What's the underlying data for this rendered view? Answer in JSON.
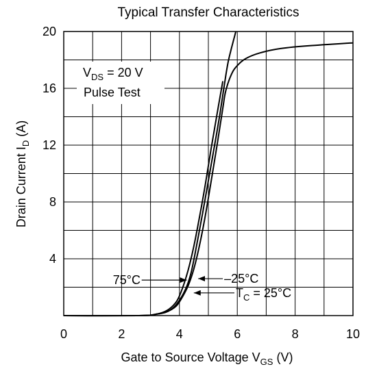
{
  "chart_data": {
    "type": "line",
    "title": "Typical Transfer Characteristics",
    "xlabel": {
      "text": "Gate to Source Voltage  V",
      "sub": "GS",
      "unit": "  (V)"
    },
    "ylabel": {
      "text": "Drain Current  I",
      "sub": "D",
      "unit": "  (A)"
    },
    "xlim": [
      0,
      10
    ],
    "ylim": [
      0,
      20
    ],
    "x_ticks": [
      0,
      2,
      4,
      6,
      8,
      10
    ],
    "y_ticks": [
      4,
      8,
      12,
      16,
      20
    ],
    "grid": true,
    "conditions": {
      "line1_main": "V",
      "line1_sub": "DS",
      "line1_rest": " = 20 V",
      "line2": "Pulse Test"
    },
    "series": [
      {
        "label_main": "–25°C",
        "x": [
          0,
          2.6,
          3.2,
          3.6,
          3.9,
          4.2,
          4.4,
          4.6,
          4.8,
          5.0,
          5.2,
          5.4,
          5.55,
          5.7,
          5.95
        ],
        "y": [
          0,
          0,
          0.1,
          0.3,
          0.8,
          1.8,
          3.0,
          5.0,
          7.2,
          9.5,
          11.8,
          14.2,
          16.2,
          18.0,
          20.0
        ]
      },
      {
        "label_main": "T",
        "label_sub": "C",
        "label_rest": " = 25°C",
        "x": [
          0,
          2.6,
          3.2,
          3.6,
          3.9,
          4.1,
          4.3,
          4.5,
          4.7,
          4.9,
          5.1,
          5.3,
          5.5,
          5.6,
          5.8,
          6.0,
          6.3,
          6.8,
          7.5,
          8.5,
          10
        ],
        "y": [
          0,
          0,
          0.1,
          0.3,
          0.7,
          1.3,
          2.1,
          3.3,
          5.0,
          7.1,
          9.5,
          12.0,
          14.6,
          15.8,
          17.0,
          17.6,
          18.1,
          18.5,
          18.8,
          19.0,
          19.2
        ]
      },
      {
        "label_main": "75°C",
        "x": [
          0,
          2.6,
          3.2,
          3.6,
          3.9,
          4.1,
          4.3,
          4.5,
          4.7,
          4.9,
          5.1,
          5.3,
          5.5
        ],
        "y": [
          0,
          0,
          0.1,
          0.4,
          1.0,
          1.9,
          3.2,
          4.9,
          7.0,
          9.3,
          11.8,
          14.2,
          16.5
        ]
      }
    ],
    "annotations": [
      {
        "label_main": "75°C",
        "arrow_to": [
          4.3,
          2.5
        ],
        "text_at": [
          2.6,
          2.5
        ]
      },
      {
        "label_main": "–25°C",
        "arrow_to": [
          4.6,
          2.6
        ],
        "text_at": [
          5.5,
          2.6
        ]
      },
      {
        "label_main": "T",
        "label_sub": "C",
        "label_rest": " = 25°C",
        "arrow_to": [
          4.45,
          1.6
        ],
        "text_at": [
          5.9,
          1.6
        ]
      }
    ]
  }
}
